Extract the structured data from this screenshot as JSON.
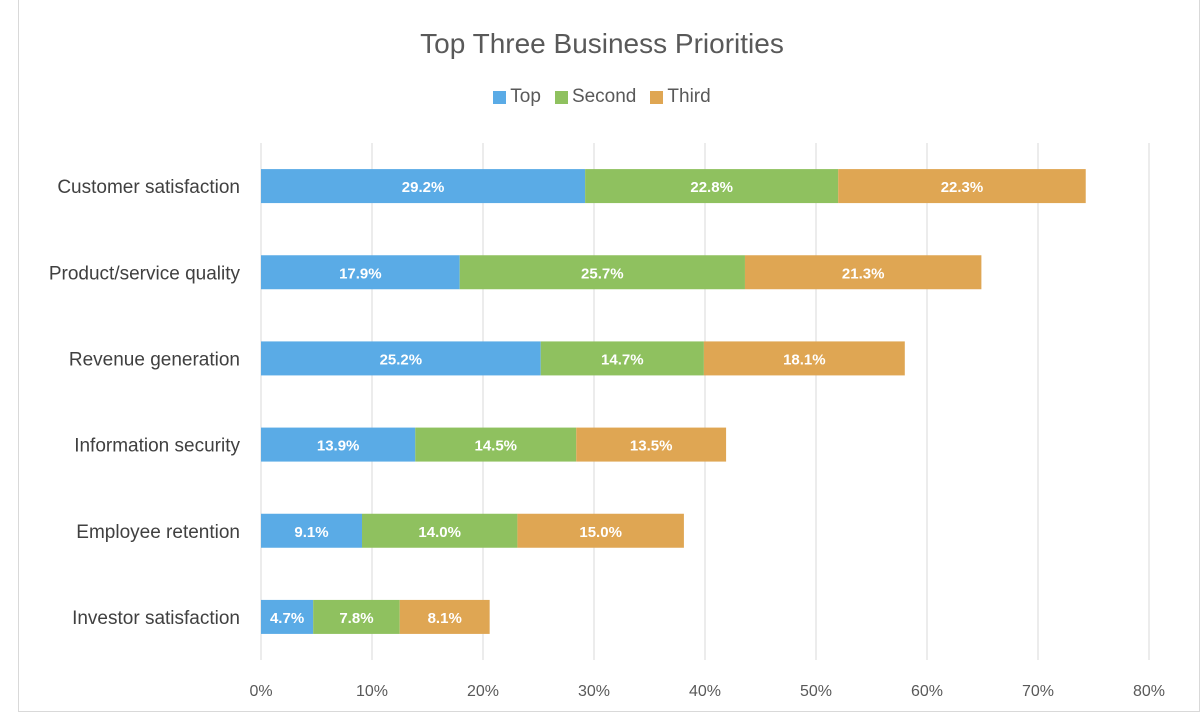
{
  "chart_data": {
    "type": "bar",
    "orientation": "horizontal",
    "stacked": true,
    "title": "Top Three Business Priorities",
    "categories": [
      "Customer satisfaction",
      "Product/service quality",
      "Revenue generation",
      "Information security",
      "Employee retention",
      "Investor satisfaction"
    ],
    "series": [
      {
        "name": "Top",
        "color": "#5aabe6",
        "values": [
          29.2,
          17.9,
          25.2,
          13.9,
          9.1,
          4.7
        ]
      },
      {
        "name": "Second",
        "color": "#8fc15f",
        "values": [
          22.8,
          25.7,
          14.7,
          14.5,
          14.0,
          7.8
        ]
      },
      {
        "name": "Third",
        "color": "#dfa653",
        "values": [
          22.3,
          21.3,
          18.1,
          13.5,
          15.0,
          8.1
        ]
      }
    ],
    "data_labels": [
      [
        "29.2%",
        "17.9%",
        "25.2%",
        "13.9%",
        "9.1%",
        "4.7%"
      ],
      [
        "22.8%",
        "25.7%",
        "14.7%",
        "14.5%",
        "14.0%",
        "7.8%"
      ],
      [
        "22.3%",
        "21.3%",
        "18.1%",
        "13.5%",
        "15.0%",
        "8.1%"
      ]
    ],
    "xlim": [
      0,
      80
    ],
    "xticks": [
      "0%",
      "10%",
      "20%",
      "30%",
      "40%",
      "50%",
      "60%",
      "70%",
      "80%"
    ],
    "grid": true,
    "legend_position": "top"
  }
}
